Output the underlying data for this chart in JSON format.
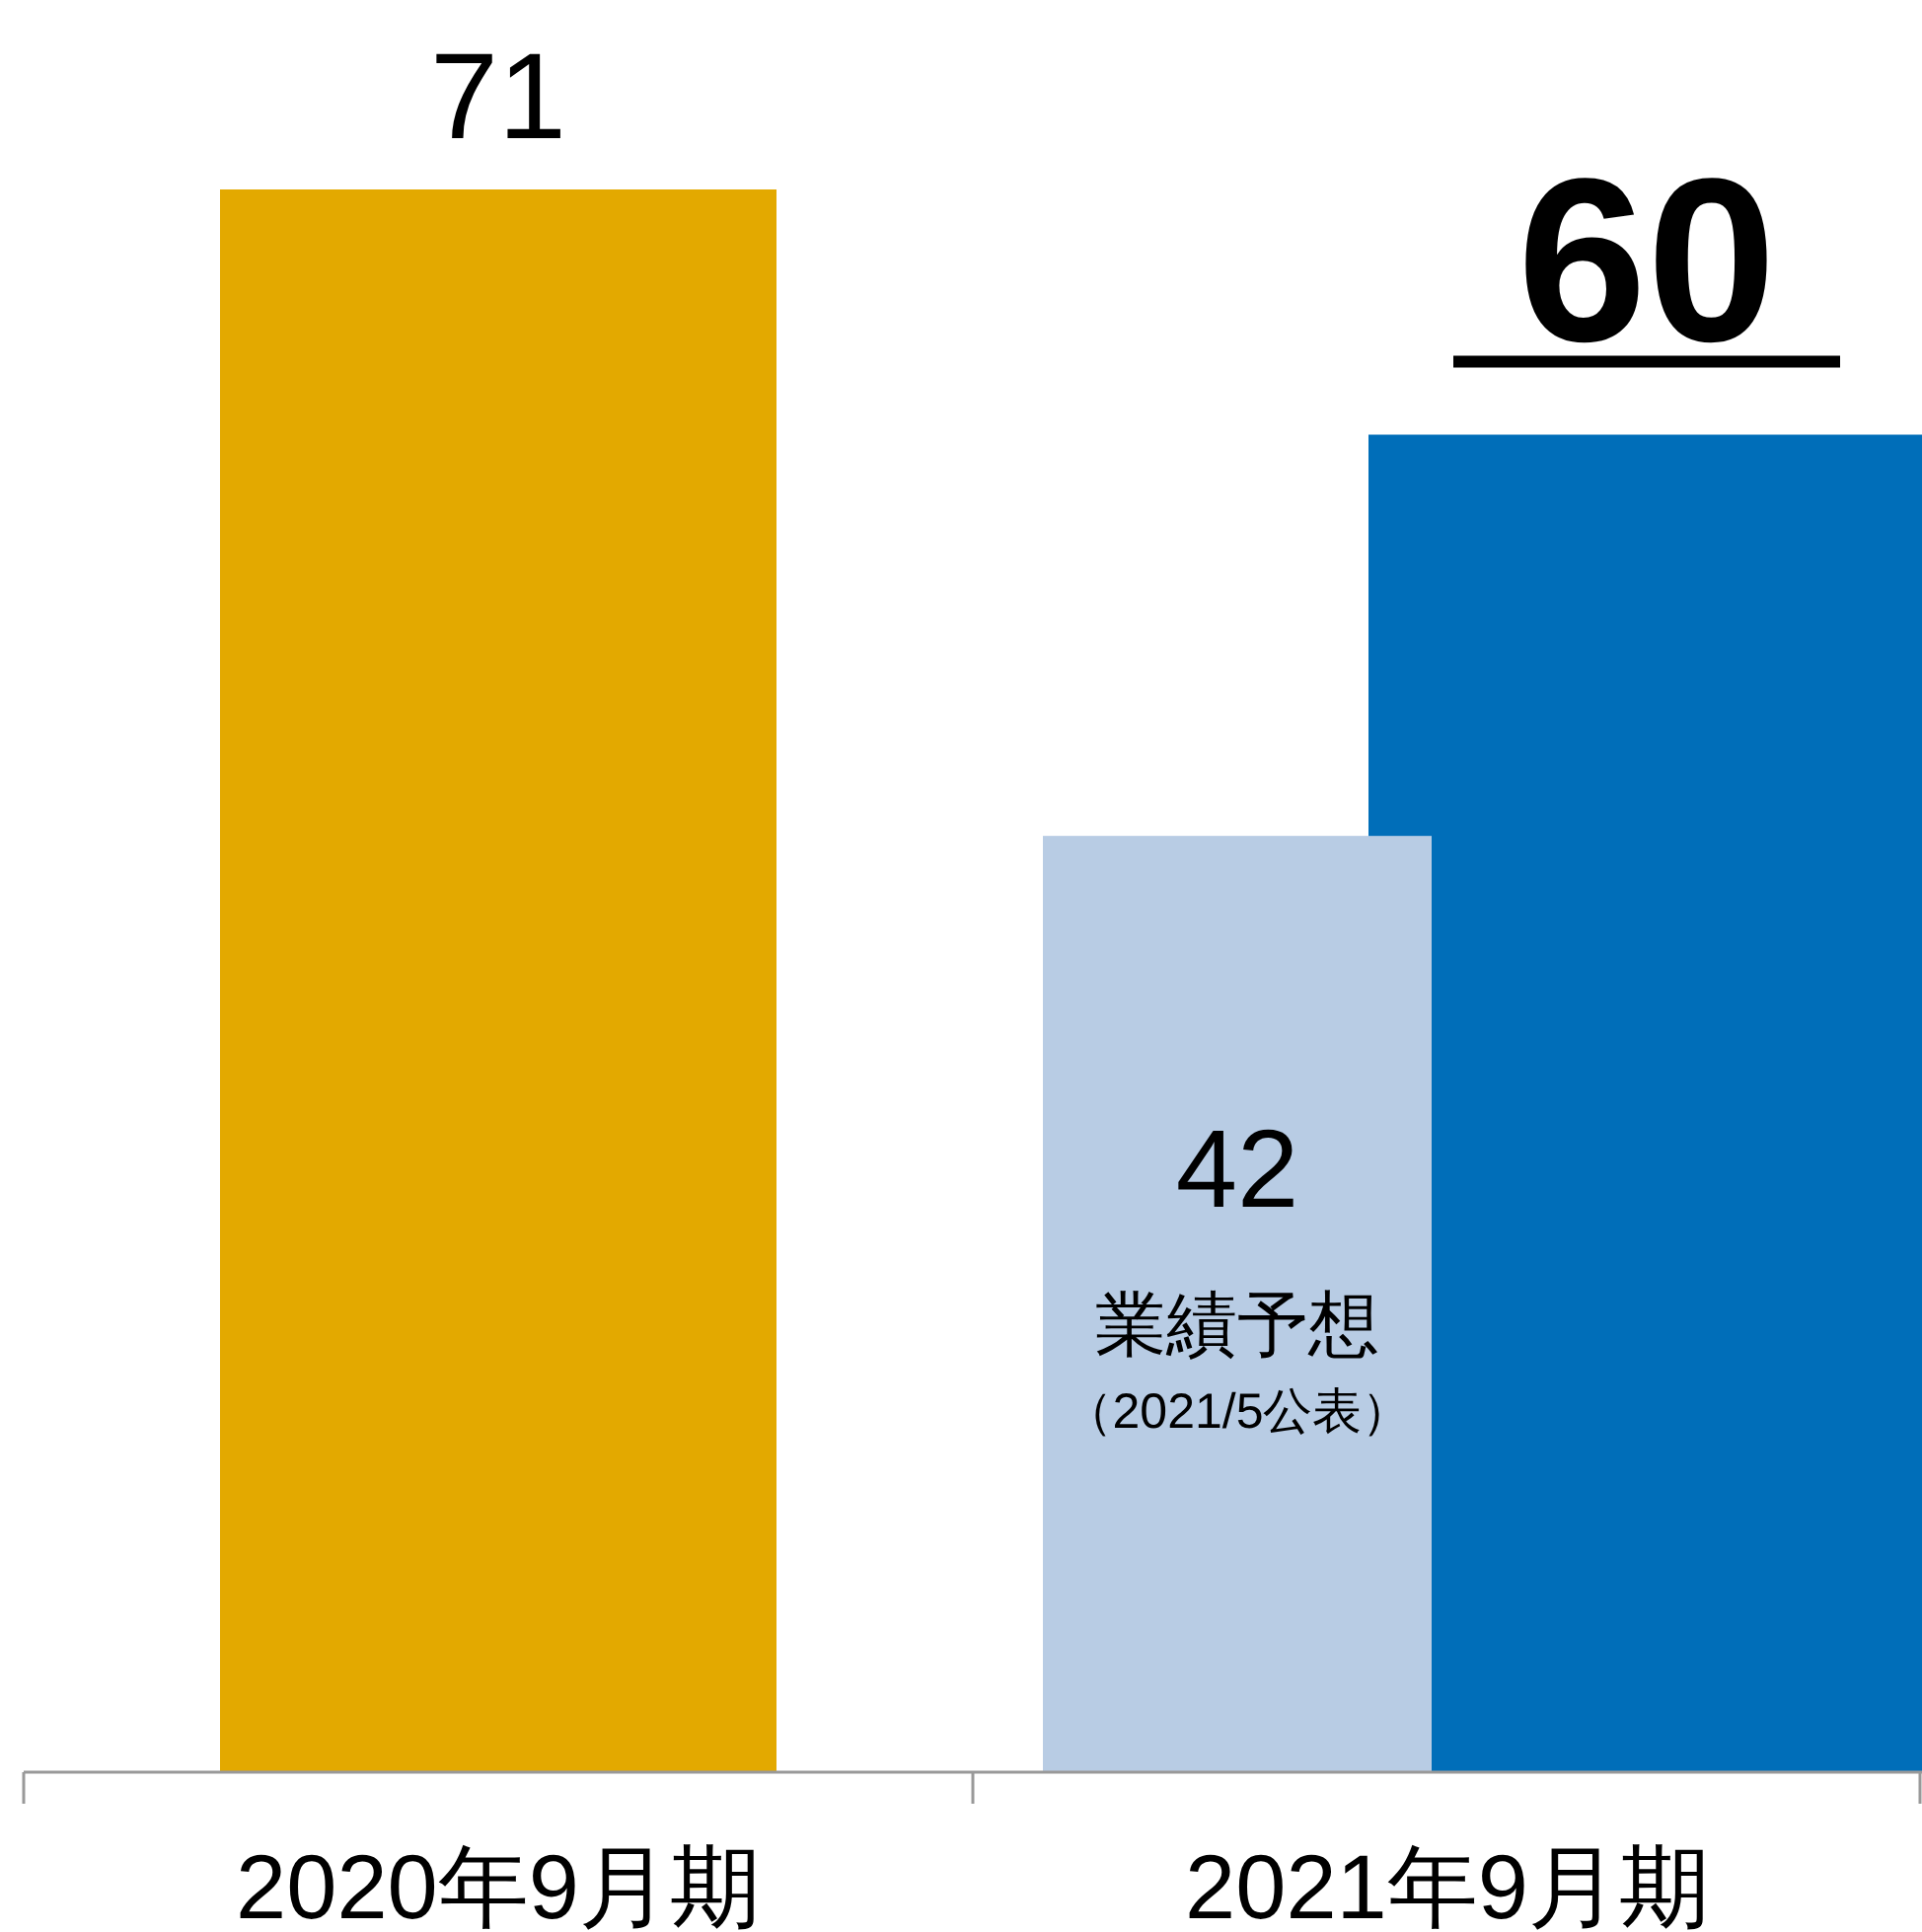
{
  "chart_data": {
    "type": "bar",
    "categories": [
      "2020年9月期",
      "2021年9月期"
    ],
    "series": [
      {
        "colors": [
          "#e3a900",
          "#006eb9"
        ],
        "values": [
          71,
          60
        ]
      },
      {
        "name": "業績予想",
        "color": "#b8cce4",
        "values": [
          null,
          42
        ]
      }
    ],
    "data_labels": true,
    "annotations": [
      "（2021/5公表）"
    ]
  }
}
